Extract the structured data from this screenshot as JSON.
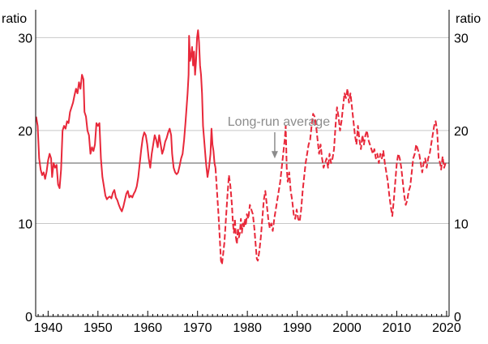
{
  "chart_data": {
    "type": "line",
    "title": "",
    "xlabel": "",
    "ylabel_left": "ratio",
    "ylabel_right": "ratio",
    "xlim": [
      1937.5,
      2020.5
    ],
    "ylim": [
      0,
      33
    ],
    "x_ticks": [
      1940,
      1950,
      1960,
      1970,
      1980,
      1990,
      2000,
      2010,
      2020
    ],
    "y_ticks": [
      0,
      10,
      20,
      30
    ],
    "grid": "horizontal",
    "legend": "none",
    "reference_line": {
      "value": 16.5,
      "color": "#7a7a7a"
    },
    "annotation": {
      "text": "Long-run average",
      "arrow_x": 1985.5,
      "arrow_to_y": 17.0,
      "color": "#8c8c8c"
    },
    "colors": {
      "series": "#e8283a",
      "grid": "#c8c8c8",
      "axis": "#000000"
    },
    "series": [
      {
        "style": "solid",
        "points": [
          [
            1937.6,
            21.5
          ],
          [
            1937.9,
            20.5
          ],
          [
            1938.2,
            17.0
          ],
          [
            1938.5,
            15.8
          ],
          [
            1938.8,
            15.2
          ],
          [
            1939.1,
            15.5
          ],
          [
            1939.4,
            14.8
          ],
          [
            1939.7,
            15.6
          ],
          [
            1940.0,
            16.8
          ],
          [
            1940.3,
            17.5
          ],
          [
            1940.6,
            17.0
          ],
          [
            1940.8,
            15.0
          ],
          [
            1941.1,
            16.5
          ],
          [
            1941.4,
            16.0
          ],
          [
            1941.7,
            16.3
          ],
          [
            1942.0,
            14.2
          ],
          [
            1942.3,
            13.8
          ],
          [
            1942.6,
            15.8
          ],
          [
            1942.9,
            20.0
          ],
          [
            1943.2,
            20.5
          ],
          [
            1943.5,
            20.2
          ],
          [
            1943.8,
            21.0
          ],
          [
            1944.1,
            20.8
          ],
          [
            1944.4,
            22.0
          ],
          [
            1944.7,
            22.5
          ],
          [
            1945.0,
            23.0
          ],
          [
            1945.3,
            23.8
          ],
          [
            1945.6,
            24.5
          ],
          [
            1945.9,
            24.0
          ],
          [
            1946.2,
            25.2
          ],
          [
            1946.5,
            24.5
          ],
          [
            1946.8,
            26.0
          ],
          [
            1947.1,
            25.5
          ],
          [
            1947.3,
            22.0
          ],
          [
            1947.6,
            21.5
          ],
          [
            1947.9,
            20.0
          ],
          [
            1948.2,
            19.5
          ],
          [
            1948.5,
            17.5
          ],
          [
            1948.8,
            18.2
          ],
          [
            1949.1,
            17.8
          ],
          [
            1949.4,
            18.5
          ],
          [
            1949.7,
            20.8
          ],
          [
            1950.0,
            20.5
          ],
          [
            1950.3,
            20.8
          ],
          [
            1950.6,
            17.0
          ],
          [
            1950.9,
            15.0
          ],
          [
            1951.2,
            14.0
          ],
          [
            1951.5,
            13.0
          ],
          [
            1951.8,
            12.6
          ],
          [
            1952.1,
            12.8
          ],
          [
            1952.4,
            12.9
          ],
          [
            1952.7,
            12.7
          ],
          [
            1953.0,
            13.3
          ],
          [
            1953.3,
            13.6
          ],
          [
            1953.6,
            12.8
          ],
          [
            1953.9,
            12.5
          ],
          [
            1954.2,
            12.0
          ],
          [
            1954.5,
            11.6
          ],
          [
            1954.8,
            11.3
          ],
          [
            1955.1,
            11.8
          ],
          [
            1955.4,
            12.5
          ],
          [
            1955.7,
            13.2
          ],
          [
            1956.0,
            13.5
          ],
          [
            1956.3,
            12.8
          ],
          [
            1956.6,
            13.0
          ],
          [
            1956.9,
            12.8
          ],
          [
            1957.2,
            13.2
          ],
          [
            1957.5,
            13.5
          ],
          [
            1957.8,
            14.0
          ],
          [
            1958.1,
            15.0
          ],
          [
            1958.4,
            16.5
          ],
          [
            1958.7,
            18.0
          ],
          [
            1959.0,
            19.2
          ],
          [
            1959.3,
            19.8
          ],
          [
            1959.6,
            19.5
          ],
          [
            1959.9,
            18.5
          ],
          [
            1960.2,
            17.0
          ],
          [
            1960.5,
            16.0
          ],
          [
            1960.8,
            17.5
          ],
          [
            1961.1,
            18.5
          ],
          [
            1961.4,
            19.5
          ],
          [
            1961.7,
            19.0
          ],
          [
            1962.0,
            18.2
          ],
          [
            1962.3,
            19.5
          ],
          [
            1962.6,
            18.5
          ],
          [
            1962.9,
            17.5
          ],
          [
            1963.2,
            18.0
          ],
          [
            1963.5,
            18.8
          ],
          [
            1963.8,
            19.2
          ],
          [
            1964.1,
            19.8
          ],
          [
            1964.4,
            20.2
          ],
          [
            1964.7,
            19.5
          ],
          [
            1964.9,
            17.5
          ],
          [
            1965.2,
            16.0
          ],
          [
            1965.5,
            15.5
          ],
          [
            1965.8,
            15.3
          ],
          [
            1966.1,
            15.5
          ],
          [
            1966.4,
            16.2
          ],
          [
            1966.7,
            17.0
          ],
          [
            1967.0,
            17.5
          ],
          [
            1967.3,
            19.0
          ],
          [
            1967.6,
            21.0
          ],
          [
            1967.8,
            22.5
          ],
          [
            1968.0,
            24.0
          ],
          [
            1968.2,
            26.0
          ],
          [
            1968.3,
            30.2
          ],
          [
            1968.5,
            27.5
          ],
          [
            1968.7,
            28.0
          ],
          [
            1968.9,
            29.0
          ],
          [
            1969.1,
            27.0
          ],
          [
            1969.3,
            28.5
          ],
          [
            1969.5,
            26.0
          ],
          [
            1969.7,
            27.5
          ],
          [
            1969.9,
            30.0
          ],
          [
            1970.1,
            30.8
          ],
          [
            1970.3,
            29.5
          ],
          [
            1970.5,
            27.0
          ],
          [
            1970.7,
            26.0
          ],
          [
            1970.9,
            24.0
          ],
          [
            1971.1,
            20.5
          ],
          [
            1971.4,
            18.5
          ],
          [
            1971.7,
            16.5
          ],
          [
            1972.0,
            15.0
          ],
          [
            1972.3,
            16.0
          ],
          [
            1972.6,
            17.5
          ],
          [
            1972.8,
            20.2
          ],
          [
            1973.0,
            18.5
          ],
          [
            1973.2,
            17.8
          ],
          [
            1973.4,
            16.5
          ],
          [
            1973.6,
            16.0
          ]
        ]
      },
      {
        "style": "dashed",
        "points": [
          [
            1973.6,
            16.0
          ],
          [
            1973.9,
            13.5
          ],
          [
            1974.2,
            11.0
          ],
          [
            1974.5,
            8.0
          ],
          [
            1974.7,
            6.0
          ],
          [
            1974.9,
            5.6
          ],
          [
            1975.1,
            6.5
          ],
          [
            1975.4,
            8.0
          ],
          [
            1975.7,
            10.5
          ],
          [
            1976.0,
            13.0
          ],
          [
            1976.3,
            15.2
          ],
          [
            1976.6,
            14.0
          ],
          [
            1976.9,
            12.0
          ],
          [
            1977.1,
            10.0
          ],
          [
            1977.3,
            9.0
          ],
          [
            1977.5,
            10.5
          ],
          [
            1977.7,
            8.5
          ],
          [
            1977.9,
            7.8
          ],
          [
            1978.1,
            9.5
          ],
          [
            1978.3,
            8.5
          ],
          [
            1978.5,
            9.0
          ],
          [
            1978.7,
            10.5
          ],
          [
            1978.9,
            9.0
          ],
          [
            1979.1,
            10.0
          ],
          [
            1979.3,
            9.5
          ],
          [
            1979.5,
            10.5
          ],
          [
            1979.7,
            9.8
          ],
          [
            1979.9,
            11.0
          ],
          [
            1980.2,
            10.5
          ],
          [
            1980.5,
            12.0
          ],
          [
            1980.8,
            11.5
          ],
          [
            1981.1,
            11.0
          ],
          [
            1981.4,
            9.5
          ],
          [
            1981.7,
            7.5
          ],
          [
            1981.9,
            6.2
          ],
          [
            1982.1,
            6.0
          ],
          [
            1982.4,
            7.0
          ],
          [
            1982.7,
            8.5
          ],
          [
            1983.0,
            10.5
          ],
          [
            1983.3,
            12.5
          ],
          [
            1983.6,
            13.5
          ],
          [
            1983.9,
            12.0
          ],
          [
            1984.2,
            10.5
          ],
          [
            1984.5,
            9.5
          ],
          [
            1984.8,
            10.0
          ],
          [
            1985.1,
            9.2
          ],
          [
            1985.4,
            10.5
          ],
          [
            1985.7,
            11.5
          ],
          [
            1986.0,
            12.5
          ],
          [
            1986.3,
            13.5
          ],
          [
            1986.6,
            14.5
          ],
          [
            1986.9,
            16.0
          ],
          [
            1987.2,
            17.5
          ],
          [
            1987.5,
            19.0
          ],
          [
            1987.7,
            20.5
          ],
          [
            1987.9,
            16.0
          ],
          [
            1988.1,
            14.5
          ],
          [
            1988.4,
            15.5
          ],
          [
            1988.7,
            13.5
          ],
          [
            1989.0,
            12.5
          ],
          [
            1989.3,
            11.0
          ],
          [
            1989.6,
            10.5
          ],
          [
            1989.9,
            11.5
          ],
          [
            1990.2,
            10.5
          ],
          [
            1990.5,
            10.2
          ],
          [
            1990.8,
            11.5
          ],
          [
            1991.1,
            13.5
          ],
          [
            1991.4,
            15.0
          ],
          [
            1991.7,
            16.5
          ],
          [
            1992.0,
            17.5
          ],
          [
            1992.3,
            18.5
          ],
          [
            1992.6,
            19.0
          ],
          [
            1992.9,
            20.5
          ],
          [
            1993.2,
            21.8
          ],
          [
            1993.5,
            21.5
          ],
          [
            1993.8,
            20.5
          ],
          [
            1994.1,
            19.0
          ],
          [
            1994.4,
            17.5
          ],
          [
            1994.7,
            18.5
          ],
          [
            1995.0,
            17.0
          ],
          [
            1995.3,
            16.0
          ],
          [
            1995.6,
            16.5
          ],
          [
            1995.9,
            17.0
          ],
          [
            1996.2,
            16.0
          ],
          [
            1996.5,
            17.5
          ],
          [
            1996.8,
            16.5
          ],
          [
            1997.1,
            17.0
          ],
          [
            1997.4,
            18.0
          ],
          [
            1997.7,
            20.5
          ],
          [
            1998.0,
            22.5
          ],
          [
            1998.3,
            21.5
          ],
          [
            1998.6,
            20.0
          ],
          [
            1998.9,
            21.0
          ],
          [
            1999.2,
            22.5
          ],
          [
            1999.5,
            24.0
          ],
          [
            1999.8,
            23.5
          ],
          [
            2000.1,
            24.5
          ],
          [
            2000.4,
            23.0
          ],
          [
            2000.7,
            24.0
          ],
          [
            2001.0,
            22.5
          ],
          [
            2001.3,
            21.0
          ],
          [
            2001.6,
            19.5
          ],
          [
            2001.9,
            18.5
          ],
          [
            2002.2,
            20.5
          ],
          [
            2002.5,
            19.0
          ],
          [
            2002.8,
            18.0
          ],
          [
            2003.1,
            19.5
          ],
          [
            2003.4,
            18.5
          ],
          [
            2003.7,
            19.5
          ],
          [
            2004.0,
            20.0
          ],
          [
            2004.3,
            19.0
          ],
          [
            2004.6,
            18.5
          ],
          [
            2004.9,
            18.0
          ],
          [
            2005.2,
            17.5
          ],
          [
            2005.5,
            18.0
          ],
          [
            2005.8,
            17.0
          ],
          [
            2006.1,
            17.5
          ],
          [
            2006.4,
            16.5
          ],
          [
            2006.7,
            17.5
          ],
          [
            2007.0,
            17.0
          ],
          [
            2007.3,
            17.8
          ],
          [
            2007.6,
            16.5
          ],
          [
            2007.9,
            15.5
          ],
          [
            2008.2,
            14.5
          ],
          [
            2008.5,
            13.0
          ],
          [
            2008.8,
            11.8
          ],
          [
            2009.1,
            10.8
          ],
          [
            2009.4,
            12.5
          ],
          [
            2009.7,
            14.5
          ],
          [
            2010.0,
            16.5
          ],
          [
            2010.3,
            17.5
          ],
          [
            2010.6,
            17.0
          ],
          [
            2010.9,
            16.0
          ],
          [
            2011.2,
            14.5
          ],
          [
            2011.5,
            13.0
          ],
          [
            2011.8,
            12.0
          ],
          [
            2012.1,
            12.5
          ],
          [
            2012.4,
            13.5
          ],
          [
            2012.7,
            14.0
          ],
          [
            2013.0,
            15.5
          ],
          [
            2013.3,
            17.0
          ],
          [
            2013.6,
            17.5
          ],
          [
            2013.9,
            18.5
          ],
          [
            2014.2,
            18.0
          ],
          [
            2014.5,
            17.5
          ],
          [
            2014.8,
            16.5
          ],
          [
            2015.1,
            15.5
          ],
          [
            2015.4,
            16.5
          ],
          [
            2015.7,
            17.0
          ],
          [
            2016.0,
            16.0
          ],
          [
            2016.3,
            17.0
          ],
          [
            2016.6,
            17.5
          ],
          [
            2016.9,
            18.5
          ],
          [
            2017.2,
            19.5
          ],
          [
            2017.5,
            20.5
          ],
          [
            2017.8,
            21.0
          ],
          [
            2018.1,
            20.0
          ],
          [
            2018.4,
            17.0
          ],
          [
            2018.7,
            16.5
          ],
          [
            2018.9,
            15.8
          ],
          [
            2019.2,
            17.2
          ],
          [
            2019.5,
            16.0
          ],
          [
            2019.8,
            16.5
          ]
        ]
      }
    ]
  }
}
